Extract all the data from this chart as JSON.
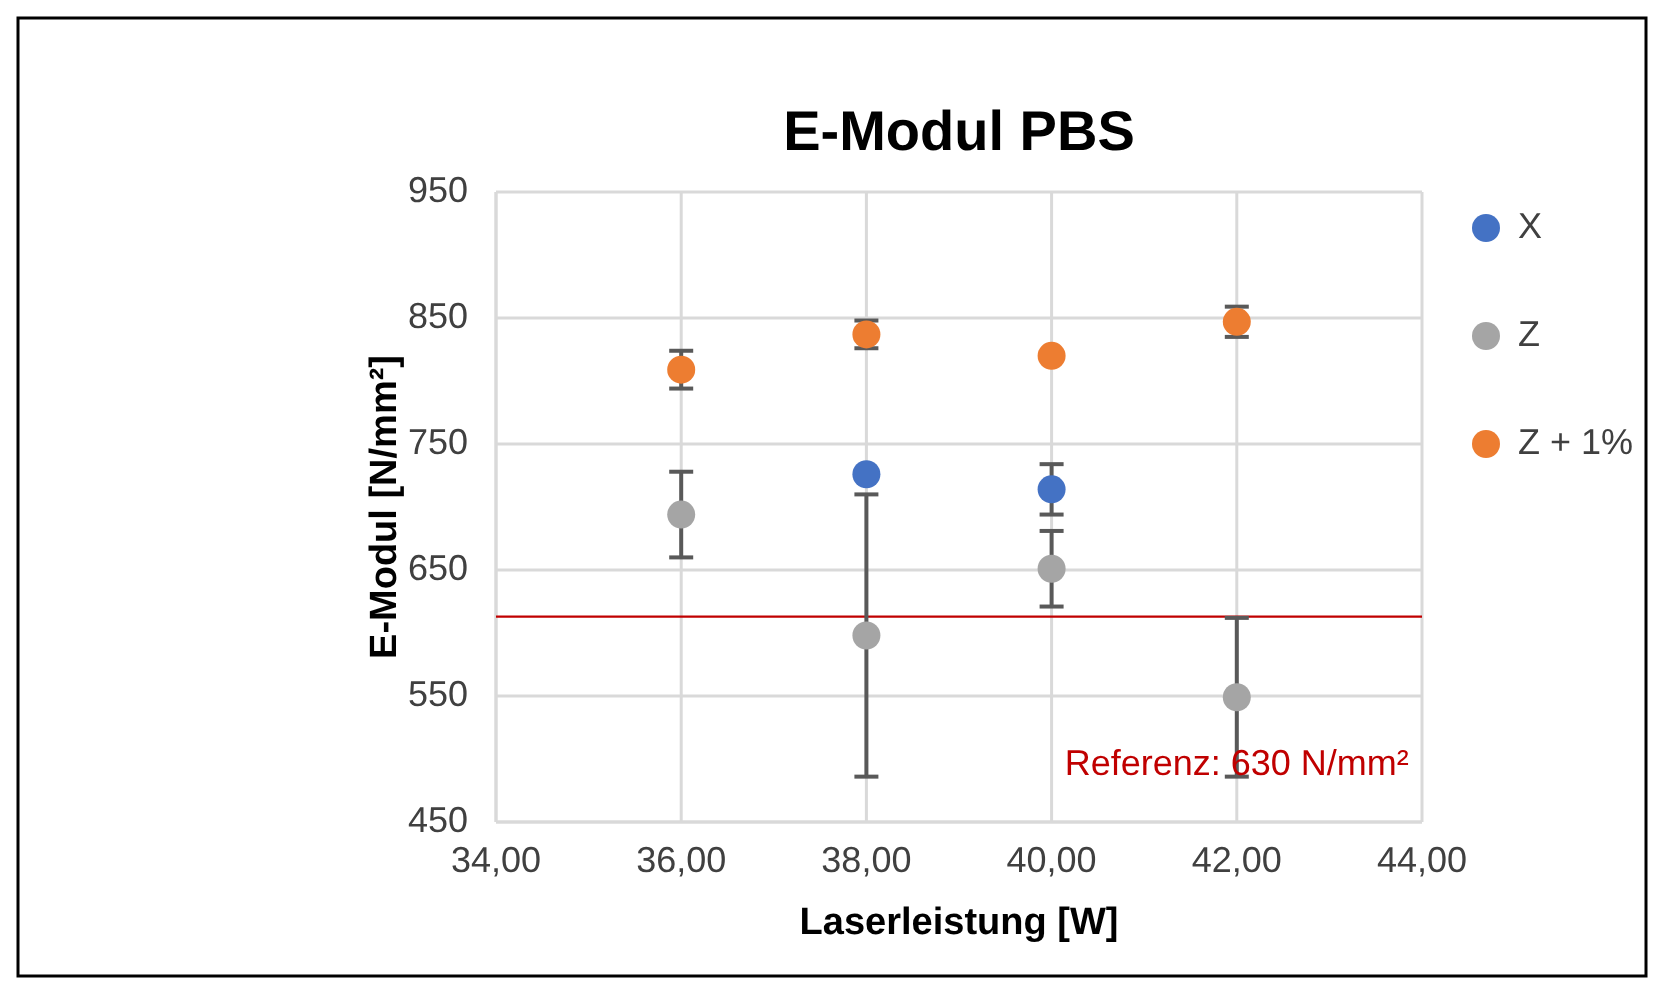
{
  "chart_data": {
    "type": "scatter",
    "title": "E-Modul PBS",
    "xlabel": "Laserleistung [W]",
    "ylabel": "E-Modul [N/mm²]",
    "x": [
      36,
      38,
      40,
      42
    ],
    "series": [
      {
        "name": "X",
        "color": "#4472c4",
        "values": [
          null,
          726,
          714,
          null
        ],
        "errors": [
          null,
          null,
          20,
          null
        ]
      },
      {
        "name": "Z",
        "color": "#a5a5a5",
        "values": [
          694,
          598,
          651,
          549
        ],
        "errors": [
          34,
          112,
          30,
          63
        ]
      },
      {
        "name": "Z + 1%",
        "color": "#ed7d31",
        "values": [
          809,
          837,
          820,
          847
        ],
        "errors": [
          15,
          11,
          null,
          12
        ]
      }
    ],
    "xlim": [
      34,
      44
    ],
    "xticks": [
      {
        "value": 34,
        "label": "34,00"
      },
      {
        "value": 36,
        "label": "36,00"
      },
      {
        "value": 38,
        "label": "38,00"
      },
      {
        "value": 40,
        "label": "40,00"
      },
      {
        "value": 42,
        "label": "42,00"
      },
      {
        "value": 44,
        "label": "44,00"
      }
    ],
    "ylim": [
      450,
      950
    ],
    "yticks": [
      450,
      550,
      650,
      750,
      850,
      950
    ],
    "ref_lines": [
      {
        "axis": "y",
        "value": 613,
        "color": "#c00000"
      }
    ],
    "annotations": [
      {
        "text": "Referenz: 630 N/mm²",
        "x": 42,
        "y": 495
      }
    ],
    "grid": true,
    "legend": "right",
    "marker": "circle"
  }
}
